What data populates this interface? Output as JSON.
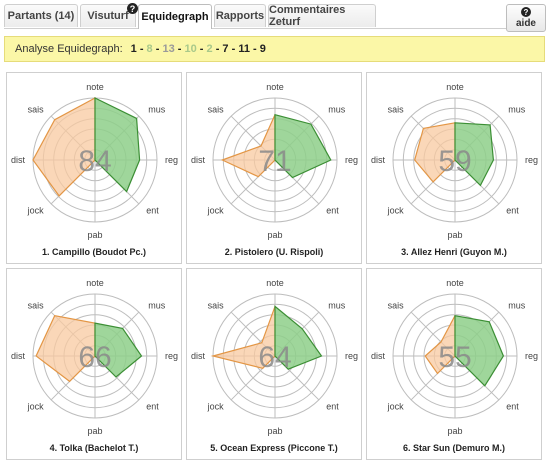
{
  "tabs": [
    {
      "label": "Partants (14)",
      "active": false
    },
    {
      "label": "Visuturf",
      "active": false,
      "badge": "?"
    },
    {
      "label": "Equidegraph",
      "active": true
    },
    {
      "label": "Rapports",
      "active": false
    },
    {
      "label": "Commentaires Zeturf",
      "active": false
    }
  ],
  "help_button": {
    "icon": "question-circle-icon",
    "label": "aide"
  },
  "banner": {
    "lead": "Analyse Equidegraph:",
    "sequence": [
      {
        "value": "1",
        "color": "#222222"
      },
      {
        "value": "8",
        "color": "#a9c98a"
      },
      {
        "value": "13",
        "color": "#9a9a9a"
      },
      {
        "value": "10",
        "color": "#a9c98a"
      },
      {
        "value": "2",
        "color": "#a9c98a"
      },
      {
        "value": "7",
        "color": "#222222"
      },
      {
        "value": "11",
        "color": "#222222"
      },
      {
        "value": "9",
        "color": "#222222"
      }
    ],
    "separator": " - "
  },
  "axis_labels": [
    "note",
    "mus",
    "reg",
    "ent",
    "pab",
    "jock",
    "dist",
    "sais"
  ],
  "colors": {
    "green_fill": "#8ecf8a",
    "green_stroke": "#3c8f35",
    "orange_fill": "#f8c9a0",
    "orange_stroke": "#e39645",
    "ring": "#bdbdbd"
  },
  "horses": [
    {
      "caption": "1. Campillo (Boudot Pc.)",
      "score": "84",
      "values": {
        "note": 1.0,
        "mus": 0.95,
        "reg": 0.72,
        "ent": 0.72,
        "pab": 0.0,
        "jock": 0.82,
        "dist": 1.0,
        "sais": 0.92
      }
    },
    {
      "caption": "2. Pistolero (U. Rispoli)",
      "score": "71",
      "values": {
        "note": 0.73,
        "mus": 0.82,
        "reg": 0.9,
        "ent": 0.4,
        "pab": 0.0,
        "jock": 0.38,
        "dist": 0.85,
        "sais": 0.32
      }
    },
    {
      "caption": "3. Allez Henri (Guyon M.)",
      "score": "59",
      "values": {
        "note": 0.6,
        "mus": 0.8,
        "reg": 0.62,
        "ent": 0.58,
        "pab": 0.0,
        "jock": 0.5,
        "dist": 0.65,
        "sais": 0.72
      }
    },
    {
      "caption": "4. Tolka (Bachelot T.)",
      "score": "66",
      "values": {
        "note": 0.53,
        "mus": 0.63,
        "reg": 0.75,
        "ent": 0.48,
        "pab": 0.0,
        "jock": 0.58,
        "dist": 0.95,
        "sais": 0.92
      }
    },
    {
      "caption": "5. Ocean Express (Piccone T.)",
      "score": "64",
      "values": {
        "note": 0.8,
        "mus": 0.62,
        "reg": 0.75,
        "ent": 0.3,
        "pab": 0.0,
        "jock": 0.28,
        "dist": 1.0,
        "sais": 0.3
      }
    },
    {
      "caption": "6. Star Sun (Demuro M.)",
      "score": "55",
      "values": {
        "note": 0.65,
        "mus": 0.78,
        "reg": 0.78,
        "ent": 0.68,
        "pab": 0.0,
        "jock": 0.4,
        "dist": 0.48,
        "sais": 0.32
      }
    }
  ]
}
